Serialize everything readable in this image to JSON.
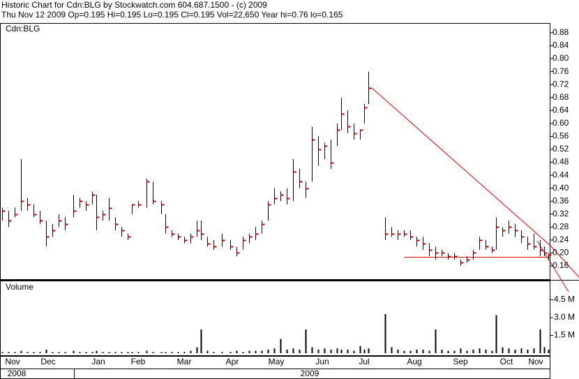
{
  "chart_data": {
    "type": "ohlc",
    "title": "Historic Chart for Cdn:BLG by Stockwatch.com 604.687.1500 - (c) 2009",
    "subtitle": "Thu Nov 12 2009   Op=0.195   Hi=0.195   Lo=0.195   Cl=0.195   Vol=22,650   Year hi=0.76   lo=0.165",
    "symbol_label": "Cdn:BLG",
    "volume_label": "Volume",
    "xlim": [
      0,
      263
    ],
    "xticks": [
      {
        "value": 6,
        "label": "Nov"
      },
      {
        "value": 23,
        "label": "Dec"
      },
      {
        "value": 47,
        "label": "Jan"
      },
      {
        "value": 66,
        "label": "Feb"
      },
      {
        "value": 88,
        "label": "Mar"
      },
      {
        "value": 111,
        "label": "Apr"
      },
      {
        "value": 132,
        "label": "May"
      },
      {
        "value": 154,
        "label": "Jun"
      },
      {
        "value": 174,
        "label": "Jul"
      },
      {
        "value": 198,
        "label": "Aug"
      },
      {
        "value": 220,
        "label": "Sep"
      },
      {
        "value": 242,
        "label": "Oct"
      },
      {
        "value": 256,
        "label": "Nov"
      }
    ],
    "years": [
      {
        "value": 8,
        "label": "2008"
      },
      {
        "value": 148,
        "label": "2009"
      }
    ],
    "ylim": [
      0.117,
      0.91
    ],
    "yticks": [
      0.16,
      {
        "value": 0.2,
        "label": "0.20"
      },
      0.24,
      0.28,
      0.32,
      0.36,
      {
        "value": 0.4,
        "label": "0.40"
      },
      0.44,
      0.48,
      0.52,
      0.56,
      {
        "value": 0.6,
        "label": "0.60"
      },
      0.64,
      0.68,
      0.72,
      0.76,
      {
        "value": 0.8,
        "label": "0.80"
      },
      0.84,
      0.88
    ],
    "y2lim": [
      0,
      6
    ],
    "y2ticks": [
      {
        "value": 1.5,
        "label": "1.5 M"
      },
      {
        "value": 3,
        "label": "3.0 M"
      },
      {
        "value": 4.5,
        "label": "4.5 M"
      }
    ],
    "bar_color": "#000000",
    "close_color": "#cc0000",
    "volume_color": "#000000",
    "x": [
      1,
      4,
      7,
      10,
      13,
      16,
      19,
      22,
      25,
      28,
      31,
      35,
      38,
      41,
      44,
      46,
      49,
      52,
      55,
      58,
      61,
      63,
      66,
      70,
      73,
      77,
      79,
      82,
      85,
      88,
      91,
      94,
      96,
      99,
      102,
      106,
      110,
      113,
      116,
      119,
      122,
      125,
      128,
      131,
      134,
      137,
      140,
      143,
      146,
      149,
      152,
      155,
      158,
      161,
      163,
      166,
      169,
      172,
      174,
      176,
      184,
      187,
      190,
      193,
      196,
      199,
      202,
      205,
      208,
      211,
      214,
      217,
      220,
      223,
      226,
      229,
      232,
      235,
      237,
      240,
      243,
      246,
      249,
      252,
      255,
      258,
      260,
      262
    ],
    "high": [
      0.34,
      0.33,
      0.34,
      0.49,
      0.37,
      0.35,
      0.33,
      0.3,
      0.29,
      0.32,
      0.31,
      0.38,
      0.37,
      0.36,
      0.39,
      0.38,
      0.33,
      0.37,
      0.31,
      0.28,
      0.26,
      0.35,
      0.36,
      0.43,
      0.42,
      0.36,
      0.32,
      0.27,
      0.26,
      0.25,
      0.26,
      0.3,
      0.3,
      0.25,
      0.24,
      0.26,
      0.24,
      0.22,
      0.25,
      0.26,
      0.28,
      0.3,
      0.36,
      0.4,
      0.39,
      0.4,
      0.49,
      0.46,
      0.42,
      0.59,
      0.56,
      0.54,
      0.55,
      0.6,
      0.68,
      0.64,
      0.6,
      0.58,
      0.66,
      0.76,
      0.31,
      0.28,
      0.27,
      0.27,
      0.27,
      0.25,
      0.25,
      0.23,
      0.22,
      0.21,
      0.2,
      0.2,
      0.18,
      0.19,
      0.21,
      0.25,
      0.24,
      0.22,
      0.31,
      0.28,
      0.3,
      0.29,
      0.27,
      0.25,
      0.26,
      0.24,
      0.22,
      0.2
    ],
    "low": [
      0.3,
      0.28,
      0.31,
      0.33,
      0.33,
      0.31,
      0.29,
      0.22,
      0.25,
      0.28,
      0.27,
      0.31,
      0.34,
      0.33,
      0.35,
      0.27,
      0.3,
      0.3,
      0.27,
      0.25,
      0.24,
      0.32,
      0.34,
      0.34,
      0.35,
      0.32,
      0.26,
      0.25,
      0.24,
      0.23,
      0.23,
      0.25,
      0.24,
      0.22,
      0.21,
      0.22,
      0.21,
      0.19,
      0.21,
      0.23,
      0.24,
      0.26,
      0.3,
      0.35,
      0.36,
      0.35,
      0.36,
      0.4,
      0.37,
      0.42,
      0.47,
      0.49,
      0.46,
      0.53,
      0.58,
      0.57,
      0.55,
      0.55,
      0.6,
      0.66,
      0.24,
      0.25,
      0.24,
      0.25,
      0.24,
      0.22,
      0.21,
      0.19,
      0.18,
      0.19,
      0.18,
      0.18,
      0.16,
      0.17,
      0.18,
      0.21,
      0.21,
      0.2,
      0.21,
      0.25,
      0.26,
      0.25,
      0.23,
      0.21,
      0.21,
      0.19,
      0.19,
      0.18
    ],
    "close": [
      0.33,
      0.3,
      0.32,
      0.36,
      0.35,
      0.32,
      0.3,
      0.25,
      0.27,
      0.3,
      0.29,
      0.33,
      0.36,
      0.35,
      0.38,
      0.31,
      0.32,
      0.34,
      0.29,
      0.27,
      0.25,
      0.35,
      0.35,
      0.42,
      0.36,
      0.35,
      0.28,
      0.26,
      0.25,
      0.24,
      0.25,
      0.27,
      0.26,
      0.23,
      0.22,
      0.24,
      0.22,
      0.2,
      0.24,
      0.25,
      0.26,
      0.29,
      0.35,
      0.37,
      0.38,
      0.37,
      0.45,
      0.42,
      0.4,
      0.55,
      0.52,
      0.53,
      0.48,
      0.58,
      0.63,
      0.59,
      0.57,
      0.58,
      0.65,
      0.71,
      0.26,
      0.26,
      0.26,
      0.26,
      0.25,
      0.24,
      0.23,
      0.21,
      0.2,
      0.2,
      0.19,
      0.19,
      0.17,
      0.18,
      0.2,
      0.24,
      0.22,
      0.21,
      0.28,
      0.27,
      0.28,
      0.27,
      0.25,
      0.23,
      0.22,
      0.21,
      0.2,
      0.195
    ],
    "volume": [
      0.1,
      0.1,
      0.1,
      0.2,
      0.1,
      0.1,
      0.1,
      0.3,
      0.1,
      0.1,
      0.1,
      0.2,
      0.1,
      0.1,
      0.1,
      0.2,
      0.1,
      0.1,
      0.1,
      0.1,
      0.1,
      0.1,
      0.1,
      0.2,
      0.1,
      0.1,
      0.1,
      0.1,
      0.1,
      0.1,
      0.2,
      0.5,
      2.0,
      0.2,
      0.1,
      0.1,
      0.1,
      0.2,
      0.1,
      0.2,
      0.2,
      0.2,
      0.3,
      0.4,
      1.2,
      0.3,
      0.4,
      0.3,
      2.0,
      0.5,
      0.3,
      0.4,
      0.3,
      0.4,
      0.3,
      0.3,
      0.2,
      0.6,
      0.3,
      0.4,
      3.3,
      0.5,
      0.3,
      0.2,
      0.2,
      0.3,
      0.3,
      0.2,
      2.0,
      0.3,
      0.2,
      0.2,
      0.4,
      0.2,
      0.3,
      0.4,
      0.3,
      0.2,
      3.2,
      0.5,
      0.4,
      0.3,
      0.4,
      0.3,
      0.4,
      2.0,
      0.5,
      0.3
    ]
  }
}
